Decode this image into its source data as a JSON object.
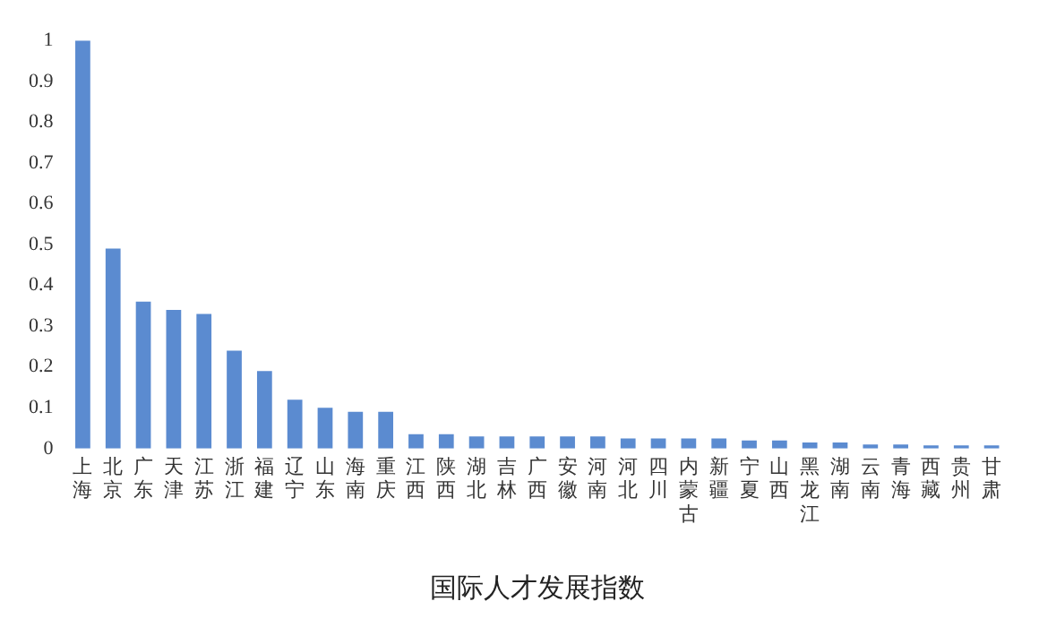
{
  "chart_data": {
    "type": "bar",
    "xlabel": "国际人才发展指数",
    "categories": [
      "上海",
      "北京",
      "广东",
      "天津",
      "江苏",
      "浙江",
      "福建",
      "辽宁",
      "山东",
      "海南",
      "重庆",
      "江西",
      "陕西",
      "湖北",
      "吉林",
      "广西",
      "安徽",
      "河南",
      "河北",
      "四川",
      "内蒙古",
      "新疆",
      "宁夏",
      "山西",
      "黑龙江",
      "湖南",
      "云南",
      "青海",
      "西藏",
      "贵州",
      "甘肃"
    ],
    "values": [
      1.0,
      0.49,
      0.36,
      0.34,
      0.33,
      0.24,
      0.19,
      0.12,
      0.1,
      0.09,
      0.09,
      0.035,
      0.035,
      0.03,
      0.03,
      0.03,
      0.03,
      0.03,
      0.025,
      0.025,
      0.025,
      0.025,
      0.02,
      0.02,
      0.015,
      0.015,
      0.01,
      0.01,
      0.008,
      0.008,
      0.008
    ],
    "color": "#5b8bd0",
    "ylim": [
      0,
      1
    ],
    "yticks": [
      0,
      0.1,
      0.2,
      0.3,
      0.4,
      0.5,
      0.6,
      0.7,
      0.8,
      0.9,
      1
    ],
    "grid": false,
    "legend": false
  }
}
